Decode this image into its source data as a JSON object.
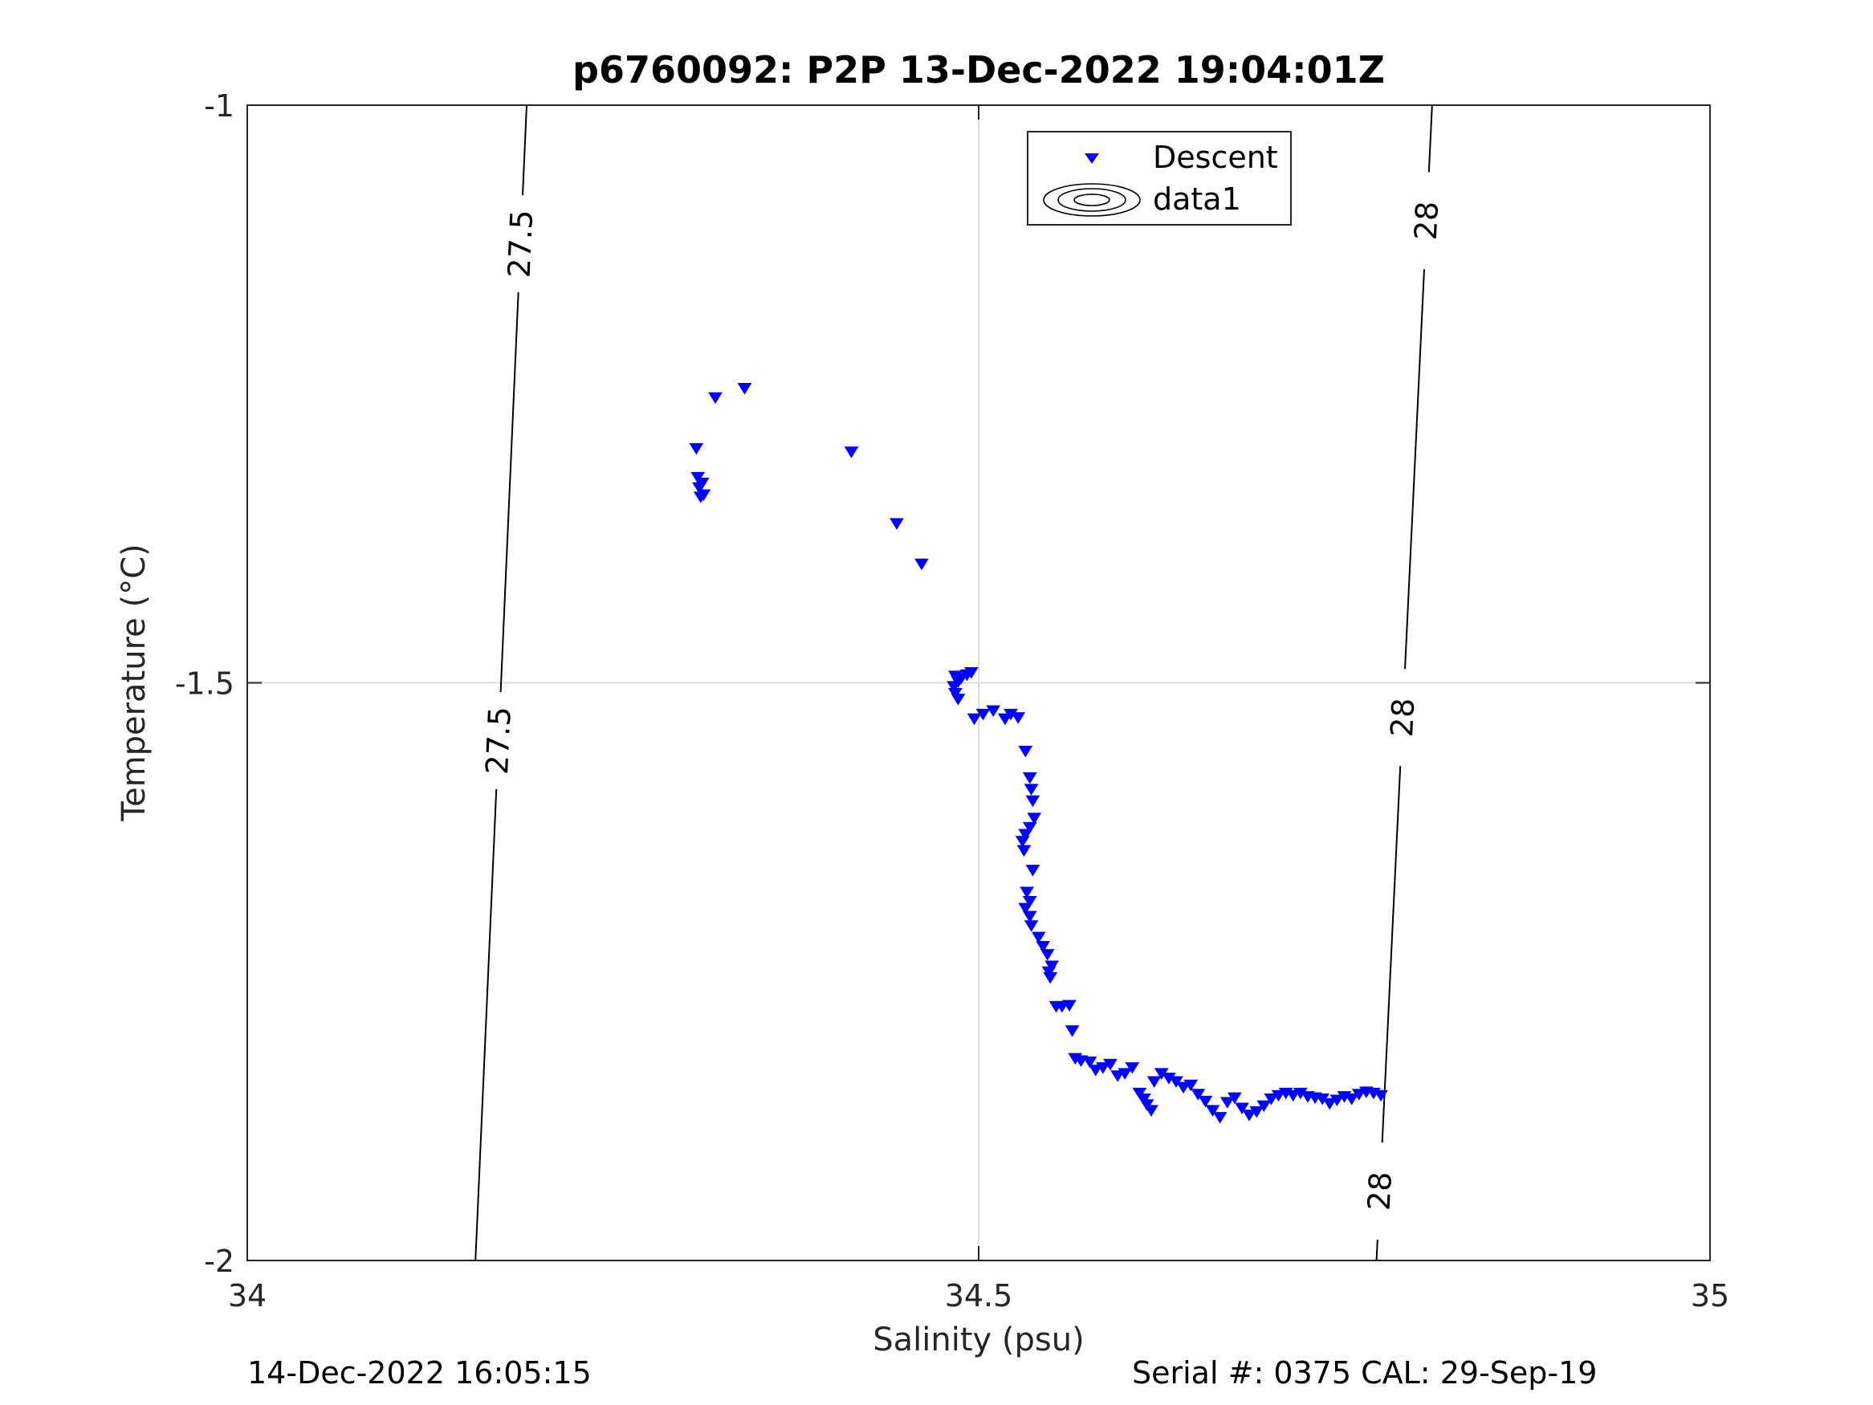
{
  "chart_data": {
    "type": "scatter",
    "title": "p6760092: P2P 13-Dec-2022 19:04:01Z",
    "xlabel": "Salinity (psu)",
    "ylabel": "Temperature (°C)",
    "xlim": [
      34,
      35
    ],
    "ylim": [
      -2,
      -1
    ],
    "xticks": [
      34,
      34.5,
      35
    ],
    "xtick_labels": [
      "34",
      "34.5",
      "35"
    ],
    "yticks": [
      -2,
      -1.5,
      -1
    ],
    "ytick_labels": [
      "-2",
      "-1.5",
      "-1"
    ],
    "grid": true,
    "legend": {
      "placement": "top-center",
      "entries": [
        "Descent",
        "data1"
      ]
    },
    "marker_color": "#0000ff",
    "series": [
      {
        "name": "Descent",
        "marker": "down-triangle",
        "points": [
          [
            34.34,
            -1.245
          ],
          [
            34.32,
            -1.253
          ],
          [
            34.307,
            -1.297
          ],
          [
            34.308,
            -1.322
          ],
          [
            34.309,
            -1.331
          ],
          [
            34.31,
            -1.339
          ],
          [
            34.311,
            -1.327
          ],
          [
            34.312,
            -1.337
          ],
          [
            34.413,
            -1.3
          ],
          [
            34.444,
            -1.362
          ],
          [
            34.461,
            -1.397
          ],
          [
            34.484,
            -1.494
          ],
          [
            34.486,
            -1.499
          ],
          [
            34.488,
            -1.496
          ],
          [
            34.492,
            -1.493
          ],
          [
            34.495,
            -1.491
          ],
          [
            34.483,
            -1.503
          ],
          [
            34.484,
            -1.509
          ],
          [
            34.486,
            -1.514
          ],
          [
            34.497,
            -1.531
          ],
          [
            34.503,
            -1.527
          ],
          [
            34.51,
            -1.524
          ],
          [
            34.518,
            -1.531
          ],
          [
            34.522,
            -1.527
          ],
          [
            34.527,
            -1.53
          ],
          [
            34.532,
            -1.559
          ],
          [
            34.535,
            -1.582
          ],
          [
            34.536,
            -1.592
          ],
          [
            34.537,
            -1.602
          ],
          [
            34.538,
            -1.617
          ],
          [
            34.535,
            -1.625
          ],
          [
            34.532,
            -1.631
          ],
          [
            34.53,
            -1.637
          ],
          [
            34.531,
            -1.645
          ],
          [
            34.537,
            -1.662
          ],
          [
            34.533,
            -1.681
          ],
          [
            34.535,
            -1.689
          ],
          [
            34.532,
            -1.695
          ],
          [
            34.535,
            -1.702
          ],
          [
            34.536,
            -1.71
          ],
          [
            34.541,
            -1.72
          ],
          [
            34.544,
            -1.728
          ],
          [
            34.547,
            -1.735
          ],
          [
            34.55,
            -1.745
          ],
          [
            34.548,
            -1.75
          ],
          [
            34.549,
            -1.755
          ],
          [
            34.553,
            -1.78
          ],
          [
            34.557,
            -1.78
          ],
          [
            34.562,
            -1.779
          ],
          [
            34.564,
            -1.801
          ],
          [
            34.566,
            -1.825
          ],
          [
            34.57,
            -1.827
          ],
          [
            34.576,
            -1.828
          ],
          [
            34.58,
            -1.835
          ],
          [
            34.585,
            -1.833
          ],
          [
            34.59,
            -1.83
          ],
          [
            34.595,
            -1.84
          ],
          [
            34.6,
            -1.838
          ],
          [
            34.605,
            -1.833
          ],
          [
            34.61,
            -1.855
          ],
          [
            34.613,
            -1.86
          ],
          [
            34.615,
            -1.865
          ],
          [
            34.618,
            -1.87
          ],
          [
            34.62,
            -1.845
          ],
          [
            34.625,
            -1.838
          ],
          [
            34.63,
            -1.842
          ],
          [
            34.635,
            -1.845
          ],
          [
            34.64,
            -1.85
          ],
          [
            34.645,
            -1.848
          ],
          [
            34.65,
            -1.856
          ],
          [
            34.655,
            -1.862
          ],
          [
            34.66,
            -1.87
          ],
          [
            34.665,
            -1.876
          ],
          [
            34.67,
            -1.863
          ],
          [
            34.675,
            -1.859
          ],
          [
            34.68,
            -1.868
          ],
          [
            34.685,
            -1.874
          ],
          [
            34.69,
            -1.871
          ],
          [
            34.695,
            -1.866
          ],
          [
            34.7,
            -1.86
          ],
          [
            34.705,
            -1.857
          ],
          [
            34.71,
            -1.855
          ],
          [
            34.715,
            -1.857
          ],
          [
            34.72,
            -1.855
          ],
          [
            34.725,
            -1.858
          ],
          [
            34.73,
            -1.859
          ],
          [
            34.735,
            -1.86
          ],
          [
            34.74,
            -1.864
          ],
          [
            34.745,
            -1.861
          ],
          [
            34.75,
            -1.858
          ],
          [
            34.755,
            -1.86
          ],
          [
            34.76,
            -1.856
          ],
          [
            34.765,
            -1.854
          ],
          [
            34.77,
            -1.855
          ],
          [
            34.775,
            -1.857
          ]
        ]
      }
    ],
    "isopycnals": [
      {
        "label": "27.5",
        "x_at_ymax": 34.191,
        "x_at_ymin": 34.156
      },
      {
        "label": "28",
        "x_at_ymax": 34.81,
        "x_at_ymin": 34.772
      }
    ]
  },
  "footer": {
    "left": "14-Dec-2022 16:05:15",
    "right": "Serial #: 0375  CAL: 29-Sep-19"
  }
}
